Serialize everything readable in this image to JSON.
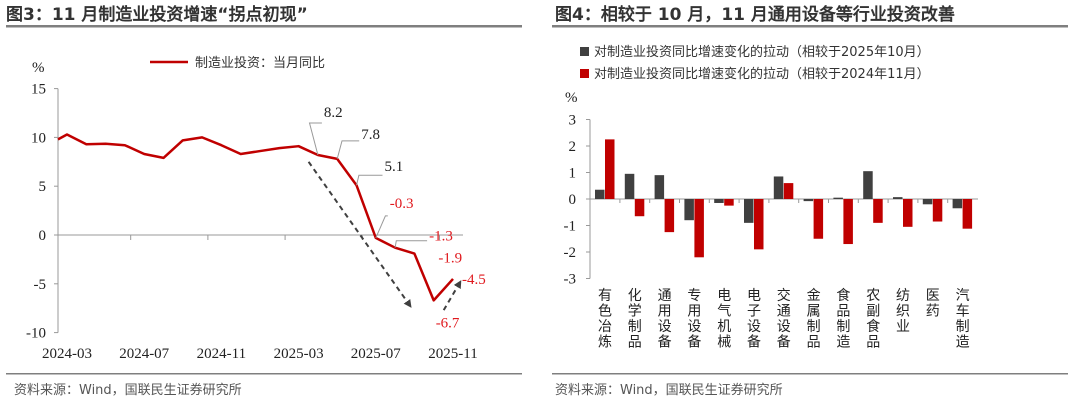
{
  "left": {
    "title": "图3：11 月制造业投资增速“拐点初现”",
    "source": "资料来源：Wind，国联民生证券研究所"
  },
  "right": {
    "title": "图4：相较于 10 月，11 月通用设备等行业投资改善",
    "source": "资料来源：Wind，国联民生证券研究所"
  },
  "chart_data": [
    {
      "type": "line",
      "ylabel": "%",
      "ylim": [
        -10,
        15
      ],
      "yticks": [
        15,
        10,
        5,
        0,
        -5,
        -10
      ],
      "xticks": [
        "2024-03",
        "2024-07",
        "2024-11",
        "2025-03",
        "2025-07",
        "2025-11"
      ],
      "x": [
        "2024-03",
        "2024-04",
        "2024-05",
        "2024-06",
        "2024-07",
        "2024-08",
        "2024-09",
        "2024-10",
        "2024-11",
        "2024-12",
        "2025-01",
        "2025-02",
        "2025-03",
        "2025-04",
        "2025-05",
        "2025-06",
        "2025-07",
        "2025-08",
        "2025-09",
        "2025-10",
        "2025-11"
      ],
      "series": [
        {
          "name": "制造业投资：当月同比",
          "color": "#C00000",
          "values": [
            10.3,
            9.3,
            9.35,
            9.2,
            8.3,
            7.9,
            9.7,
            10.0,
            9.2,
            8.3,
            8.6,
            8.9,
            9.1,
            8.2,
            7.8,
            5.1,
            -0.3,
            -1.3,
            -1.9,
            -6.7,
            -4.5
          ]
        }
      ],
      "annotations": [
        {
          "x": "2025-04",
          "text": "8.2",
          "color": "#222222"
        },
        {
          "x": "2025-05",
          "text": "7.8",
          "color": "#222222"
        },
        {
          "x": "2025-06",
          "text": "5.1",
          "color": "#222222"
        },
        {
          "x": "2025-07",
          "text": "-0.3",
          "color": "#E0191E"
        },
        {
          "x": "2025-08",
          "text": "-1.3",
          "color": "#E0191E"
        },
        {
          "x": "2025-09",
          "text": "-1.9",
          "color": "#E0191E"
        },
        {
          "x": "2025-10",
          "text": "-6.7",
          "color": "#E0191E"
        },
        {
          "x": "2025-11",
          "text": "-4.5",
          "color": "#E0191E"
        }
      ],
      "arrows": [
        {
          "from": [
            "2025-03",
            7.5
          ],
          "to": [
            "2025-09",
            -7.3
          ],
          "style": "dashed"
        },
        {
          "from": [
            "2025-10",
            -7.7
          ],
          "to": [
            "2025-12",
            -4.8
          ],
          "style": "dashed"
        }
      ],
      "legend": "top",
      "grid": false
    },
    {
      "type": "bar",
      "ylabel": "%",
      "ylim": [
        -3,
        3
      ],
      "yticks": [
        3,
        2,
        1,
        0,
        -1,
        -2,
        -3
      ],
      "categories": [
        "有色冶炼",
        "化学制品",
        "通用设备",
        "专用设备",
        "电气机械",
        "电子设备",
        "交通设备",
        "金属制品",
        "食品制造",
        "农副食品",
        "纺织业",
        "医药",
        "汽车制造"
      ],
      "series": [
        {
          "name": "对制造业投资同比增速变化的拉动（相较于2025年10月）",
          "color": "#404040",
          "values": [
            0.35,
            0.95,
            0.9,
            -0.8,
            -0.15,
            -0.9,
            0.85,
            -0.08,
            0.05,
            1.05,
            0.07,
            -0.2,
            -0.35
          ]
        },
        {
          "name": "对制造业投资同比增速变化的拉动（相较于2024年11月）",
          "color": "#C00000",
          "values": [
            2.25,
            -0.65,
            -1.25,
            -2.2,
            -0.25,
            -1.9,
            0.6,
            -1.5,
            -1.7,
            -0.9,
            -1.05,
            -0.85,
            -1.12
          ]
        }
      ],
      "legend": "top-left",
      "grid": false
    }
  ]
}
